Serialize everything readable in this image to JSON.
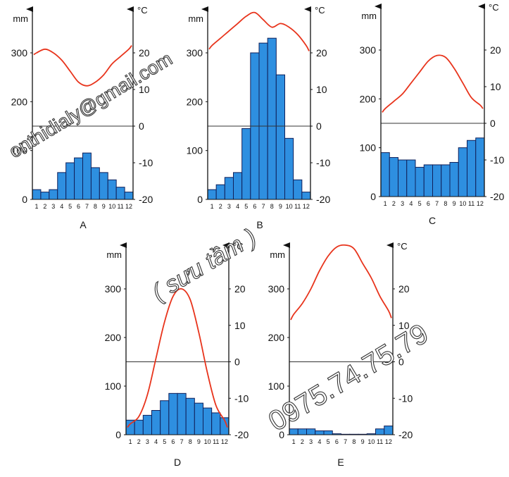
{
  "chart_data": [
    {
      "type": "bar+line",
      "label": "A",
      "precip_unit": "mm",
      "temp_unit": "°C",
      "categories": [
        "1",
        "2",
        "3",
        "4",
        "5",
        "6",
        "7",
        "8",
        "9",
        "10",
        "11",
        "12"
      ],
      "series": [
        {
          "values": [
            20,
            15,
            20,
            55,
            75,
            85,
            95,
            65,
            55,
            40,
            25,
            15
          ]
        },
        {
          "values": [
            20,
            21,
            20,
            18,
            15,
            12,
            11,
            12,
            14,
            17,
            19,
            21
          ]
        }
      ],
      "precip_ticks": [
        0,
        100,
        200,
        300
      ],
      "temp_ticks": [
        -20,
        -10,
        0,
        10,
        20
      ],
      "precip_range": [
        0,
        300
      ],
      "temp_range": [
        -20,
        20
      ]
    },
    {
      "type": "bar+line",
      "label": "B",
      "precip_unit": "mm",
      "temp_unit": "°C",
      "categories": [
        "1",
        "2",
        "3",
        "4",
        "5",
        "6",
        "7",
        "8",
        "9",
        "10",
        "11",
        "12"
      ],
      "series": [
        {
          "values": [
            20,
            30,
            45,
            55,
            145,
            300,
            320,
            330,
            255,
            125,
            40,
            15
          ]
        },
        {
          "values": [
            22,
            24,
            26,
            28,
            30,
            31,
            29,
            27,
            28,
            27,
            25,
            22
          ]
        }
      ],
      "precip_ticks": [
        0,
        100,
        200,
        300
      ],
      "temp_ticks": [
        -20,
        -10,
        0,
        10,
        20
      ],
      "precip_range": [
        0,
        300
      ],
      "temp_range": [
        -20,
        20
      ]
    },
    {
      "type": "bar+line",
      "label": "C",
      "precip_unit": "mm",
      "temp_unit": "°C",
      "categories": [
        "1",
        "2",
        "3",
        "4",
        "5",
        "6",
        "7",
        "8",
        "9",
        "10",
        "11",
        "12"
      ],
      "series": [
        {
          "values": [
            90,
            80,
            75,
            75,
            60,
            65,
            65,
            65,
            70,
            100,
            115,
            120
          ]
        },
        {
          "values": [
            4,
            6,
            8,
            11,
            14,
            17,
            18.5,
            18,
            15,
            11,
            7,
            5
          ]
        }
      ],
      "precip_ticks": [
        0,
        100,
        200,
        300
      ],
      "temp_ticks": [
        -20,
        -10,
        0,
        10,
        20
      ],
      "precip_range": [
        0,
        300
      ],
      "temp_range": [
        -20,
        20
      ]
    },
    {
      "type": "bar+line",
      "label": "D",
      "precip_unit": "mm",
      "temp_unit": "°C",
      "categories": [
        "1",
        "2",
        "3",
        "4",
        "5",
        "6",
        "7",
        "8",
        "9",
        "10",
        "11",
        "12"
      ],
      "series": [
        {
          "values": [
            30,
            30,
            40,
            50,
            70,
            85,
            85,
            75,
            65,
            55,
            45,
            35
          ]
        },
        {
          "values": [
            -17,
            -15,
            -9,
            1,
            11,
            18,
            20,
            17,
            8,
            -3,
            -12,
            -16
          ]
        }
      ],
      "precip_ticks": [
        0,
        100,
        200,
        300
      ],
      "temp_ticks": [
        -20,
        -10,
        0,
        10,
        20
      ],
      "precip_range": [
        0,
        300
      ],
      "temp_range": [
        -20,
        20
      ]
    },
    {
      "type": "bar+line",
      "label": "E",
      "precip_unit": "mm",
      "temp_unit": "°C",
      "categories": [
        "1",
        "2",
        "3",
        "4",
        "5",
        "6",
        "7",
        "8",
        "9",
        "10",
        "11",
        "12"
      ],
      "series": [
        {
          "values": [
            12,
            12,
            12,
            8,
            8,
            2,
            1,
            1,
            1,
            2,
            12,
            18
          ]
        },
        {
          "values": [
            13,
            16,
            20,
            25,
            29,
            31.5,
            32,
            31,
            27,
            23,
            18,
            14
          ]
        }
      ],
      "precip_ticks": [
        0,
        100,
        200,
        300
      ],
      "temp_ticks": [
        -20,
        -10,
        0,
        10,
        20
      ],
      "precip_range": [
        0,
        300
      ],
      "temp_range": [
        -20,
        20
      ]
    }
  ],
  "watermarks": {
    "email": "onthidialy@gmail.com",
    "collected": "( sưu tầm )",
    "phone": "0975.74.75.79"
  },
  "colors": {
    "bar_fill": "#2e8fe0",
    "bar_stroke": "#10205a",
    "temp_line": "#e8341c",
    "axis": "#111111",
    "zero_line": "#333333"
  }
}
